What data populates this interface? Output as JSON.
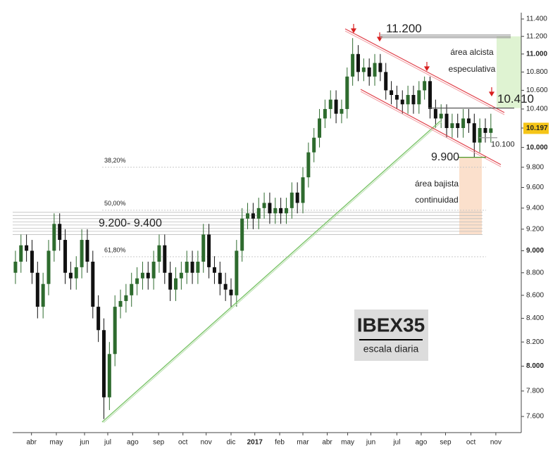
{
  "chart_data": {
    "type": "candlestick",
    "title": "IBEX35",
    "subtitle": "escala diaria",
    "log_scale": true,
    "ylim": [
      7476,
      11474
    ],
    "yticks": [
      {
        "value": 7600,
        "label": "7.600"
      },
      {
        "value": 7800,
        "label": "7.800"
      },
      {
        "value": 8000,
        "label": "8.000"
      },
      {
        "value": 8200,
        "label": "8.200"
      },
      {
        "value": 8400,
        "label": "8.400"
      },
      {
        "value": 8600,
        "label": "8.600"
      },
      {
        "value": 8800,
        "label": "8.800"
      },
      {
        "value": 9000,
        "label": "9.000"
      },
      {
        "value": 9200,
        "label": "9.200"
      },
      {
        "value": 9400,
        "label": "9.400"
      },
      {
        "value": 9600,
        "label": "9.600"
      },
      {
        "value": 9800,
        "label": "9.800"
      },
      {
        "value": 10000,
        "label": "10.000"
      },
      {
        "value": 10200,
        "label": "10.200"
      },
      {
        "value": 10400,
        "label": "10.400"
      },
      {
        "value": 10600,
        "label": "10.600"
      },
      {
        "value": 10800,
        "label": "10.800"
      },
      {
        "value": 11000,
        "label": "11.000"
      },
      {
        "value": 11200,
        "label": "11.200"
      },
      {
        "value": 11400,
        "label": "11.400"
      }
    ],
    "xlim": [
      -0.5,
      91.5
    ],
    "xticks": [
      {
        "value": 2.9,
        "label": "abr"
      },
      {
        "value": 7.4,
        "label": "may"
      },
      {
        "value": 12.5,
        "label": "jun"
      },
      {
        "value": 16.7,
        "label": "jul"
      },
      {
        "value": 21.2,
        "label": "ago"
      },
      {
        "value": 25.9,
        "label": "sep"
      },
      {
        "value": 30.3,
        "label": "oct"
      },
      {
        "value": 34.5,
        "label": "nov"
      },
      {
        "value": 39,
        "label": "dic"
      },
      {
        "value": 43.3,
        "label": "2017"
      },
      {
        "value": 47.8,
        "label": "feb"
      },
      {
        "value": 52,
        "label": "mar"
      },
      {
        "value": 56.4,
        "label": "abr"
      },
      {
        "value": 60.1,
        "label": "may"
      },
      {
        "value": 64.3,
        "label": "jun"
      },
      {
        "value": 69,
        "label": "jul"
      },
      {
        "value": 73.4,
        "label": "ago"
      },
      {
        "value": 77.8,
        "label": "sep"
      },
      {
        "value": 82.4,
        "label": "oct"
      },
      {
        "value": 86.9,
        "label": "nov"
      }
    ],
    "up_color": "#2e6b2e",
    "down_color": "#111111",
    "series": {
      "open": [
        8800,
        8900,
        9050,
        9000,
        8800,
        8500,
        8700,
        9000,
        9250,
        9100,
        8800,
        8750,
        8850,
        9100,
        8900,
        8500,
        8300,
        7750,
        8100,
        8500,
        8550,
        8600,
        8700,
        8750,
        8800,
        8750,
        8900,
        9050,
        8800,
        8650,
        8750,
        8800,
        8900,
        8800,
        8900,
        9150,
        8850,
        8800,
        8700,
        8650,
        8600,
        9000,
        9300,
        9350,
        9300,
        9400,
        9450,
        9350,
        9400,
        9350,
        9400,
        9550,
        9450,
        9700,
        9950,
        10100,
        10300,
        10400,
        10500,
        10350,
        10400,
        10750,
        11000,
        10800,
        10850,
        10750,
        10900,
        10800,
        10600,
        10550,
        10500,
        10450,
        10550,
        10450,
        10600,
        10700,
        10400,
        10300,
        10350,
        10200,
        10250,
        10200,
        10300,
        10250,
        10050,
        10200,
        10150
      ],
      "high": [
        9000,
        9150,
        9150,
        9100,
        8900,
        8800,
        9100,
        9350,
        9350,
        9200,
        8900,
        8950,
        9200,
        9200,
        9000,
        8600,
        8400,
        8200,
        8600,
        8650,
        8700,
        8800,
        8850,
        8900,
        8900,
        9000,
        9150,
        9150,
        8900,
        8850,
        8900,
        9000,
        9000,
        9000,
        9250,
        9250,
        8950,
        8900,
        8800,
        8750,
        9100,
        9400,
        9450,
        9450,
        9500,
        9550,
        9550,
        9500,
        9500,
        9500,
        9650,
        9650,
        9800,
        10050,
        10200,
        10400,
        10500,
        10600,
        10600,
        10500,
        10850,
        11180,
        11100,
        10950,
        10950,
        11000,
        11000,
        10900,
        10700,
        10650,
        10600,
        10650,
        10650,
        10700,
        10750,
        10750,
        10500,
        10450,
        10450,
        10350,
        10350,
        10400,
        10400,
        10350,
        10300,
        10300,
        10350
      ],
      "low": [
        8700,
        8800,
        8900,
        8700,
        8400,
        8400,
        8600,
        8900,
        9000,
        8700,
        8650,
        8650,
        8750,
        8800,
        8400,
        8200,
        7580,
        7650,
        8000,
        8400,
        8450,
        8500,
        8600,
        8650,
        8650,
        8650,
        8800,
        8700,
        8550,
        8550,
        8650,
        8700,
        8700,
        8700,
        8800,
        8750,
        8700,
        8600,
        8550,
        8500,
        8500,
        8900,
        9200,
        9200,
        9200,
        9300,
        9250,
        9250,
        9250,
        9250,
        9300,
        9350,
        9350,
        9600,
        9850,
        10000,
        10200,
        10300,
        10250,
        10250,
        10300,
        10650,
        10700,
        10700,
        10650,
        10650,
        10700,
        10500,
        10450,
        10400,
        10350,
        10350,
        10350,
        10350,
        10500,
        10300,
        10200,
        10200,
        10100,
        10100,
        10100,
        10100,
        10150,
        9900,
        9950,
        10050,
        10050
      ],
      "close": [
        8900,
        9050,
        9000,
        8800,
        8500,
        8700,
        9000,
        9250,
        9100,
        8800,
        8750,
        8850,
        9100,
        8900,
        8500,
        8300,
        7750,
        8100,
        8500,
        8550,
        8600,
        8700,
        8750,
        8800,
        8750,
        8900,
        9050,
        8800,
        8650,
        8750,
        8800,
        8900,
        8800,
        8900,
        9150,
        8850,
        8800,
        8700,
        8650,
        8600,
        9000,
        9300,
        9350,
        9300,
        9400,
        9450,
        9350,
        9400,
        9350,
        9400,
        9550,
        9450,
        9700,
        9950,
        10100,
        10300,
        10400,
        10500,
        10350,
        10400,
        10750,
        11000,
        10800,
        10850,
        10750,
        10900,
        10800,
        10600,
        10550,
        10500,
        10450,
        10550,
        10450,
        10600,
        10700,
        10400,
        10300,
        10350,
        10200,
        10250,
        10200,
        10300,
        10250,
        10050,
        10200,
        10150,
        10197
      ]
    },
    "last_label": "10.197",
    "levels": [
      {
        "value": 11200,
        "label": "11.200"
      },
      {
        "value": 10410,
        "label": "10.410"
      },
      {
        "value": 10100,
        "label": "10.100"
      },
      {
        "value": 9900,
        "label": "9.900"
      }
    ],
    "fibonacci": [
      {
        "value": 9800,
        "label": "38,20%"
      },
      {
        "value": 9380,
        "label": "50,00%"
      },
      {
        "value": 8945,
        "label": "61,80%"
      }
    ],
    "support_zone": {
      "range": [
        9150,
        9360
      ],
      "label": "9.200- 9.400"
    },
    "bull_area": {
      "range": [
        10410,
        11200
      ],
      "label": [
        "área alcista",
        "especulativa"
      ]
    },
    "bear_area": {
      "range": [
        9150,
        9900
      ],
      "label": [
        "área bajista",
        "continuidad"
      ]
    }
  }
}
